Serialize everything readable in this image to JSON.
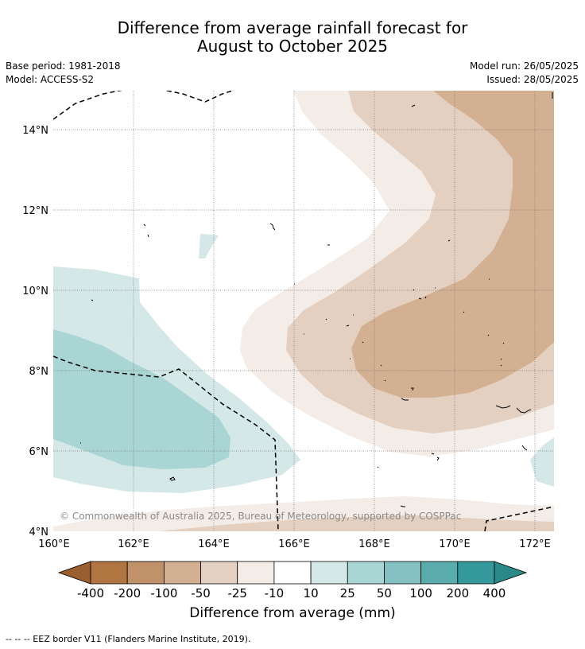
{
  "header": {
    "title_line1": "Difference from average rainfall forecast for",
    "title_line2": "August to October 2025",
    "base_period": "Base period: 1981-2018",
    "model": "Model: ACCESS-S2",
    "model_run": "Model run: 26/05/2025",
    "issued": "Issued: 28/05/2025"
  },
  "map": {
    "lat_ticks": [
      "14°N",
      "12°N",
      "10°N",
      "8°N",
      "6°N",
      "4°N"
    ],
    "lon_ticks": [
      "160°E",
      "162°E",
      "164°E",
      "166°E",
      "168°E",
      "170°E",
      "172°E"
    ],
    "copyright": "© Commonwealth of Australia 2025, Bureau of Meteorology, supported by COSPPac",
    "grid": true
  },
  "colorbar": {
    "labels": [
      "-400",
      "-200",
      "-100",
      "-50",
      "-25",
      "-10",
      "10",
      "25",
      "50",
      "100",
      "200",
      "400"
    ],
    "colors": [
      "#9a5f2e",
      "#b07540",
      "#c19169",
      "#d2b091",
      "#e4d0c0",
      "#f4ece7",
      "#ffffff",
      "#d4e8e7",
      "#a9d5d5",
      "#85c1c2",
      "#5aabab",
      "#34999a",
      "#2a8a8a"
    ],
    "title": "Difference from average (mm)"
  },
  "footnote": "--  --  -- EEZ border V11 (Flanders Marine Institute, 2019)."
}
